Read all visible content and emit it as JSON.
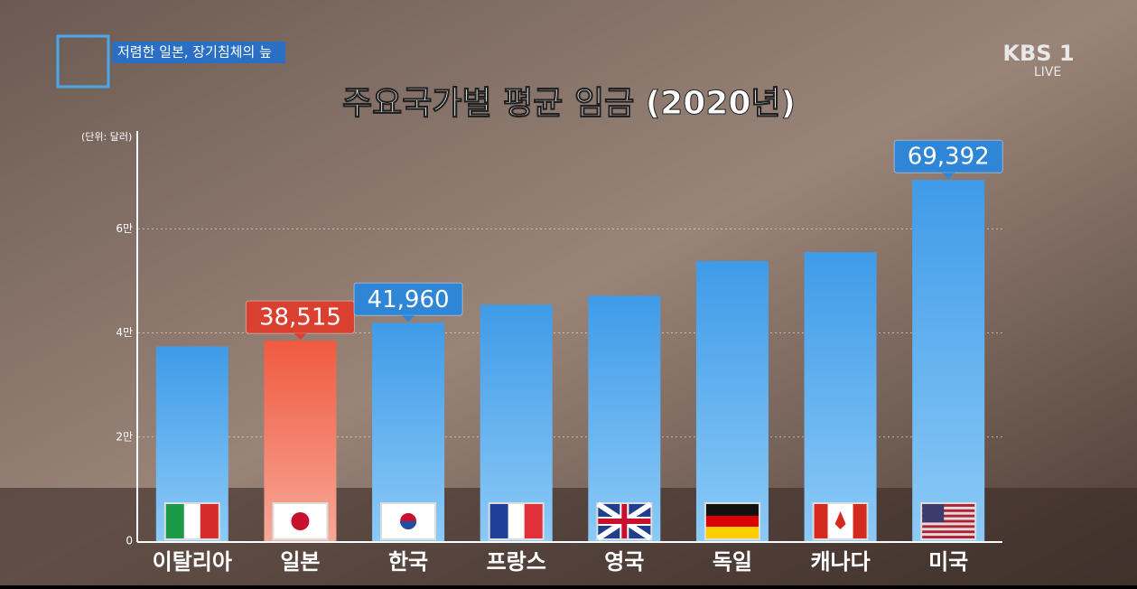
{
  "header": {
    "topic": "저렴한 일본, 장기침체의 늪",
    "channel": "KBS 1",
    "live": "LIVE"
  },
  "chart_data": {
    "type": "bar",
    "title": "주요국가별 평균 임금 (2020년)",
    "unit_label": "(단위: 달러)",
    "categories": [
      "이탈리아",
      "일본",
      "한국",
      "프랑스",
      "영국",
      "독일",
      "캐나다",
      "미국"
    ],
    "values": [
      37400,
      38515,
      41960,
      45400,
      47150,
      53800,
      55500,
      69392
    ],
    "value_labels": [
      null,
      "38,515",
      "41,960",
      null,
      null,
      null,
      null,
      "69,392"
    ],
    "colors": [
      "#4aa6ee",
      "#f0604a",
      "#4aa6ee",
      "#4aa6ee",
      "#4aa6ee",
      "#4aa6ee",
      "#4aa6ee",
      "#4aa6ee"
    ],
    "ylim": [
      0,
      78800
    ],
    "yticks": [
      0,
      {
        "value": 20000,
        "label": "2만"
      },
      {
        "value": 40000,
        "label": "4만"
      },
      {
        "value": 60000,
        "label": "6만"
      }
    ],
    "grid": true
  }
}
